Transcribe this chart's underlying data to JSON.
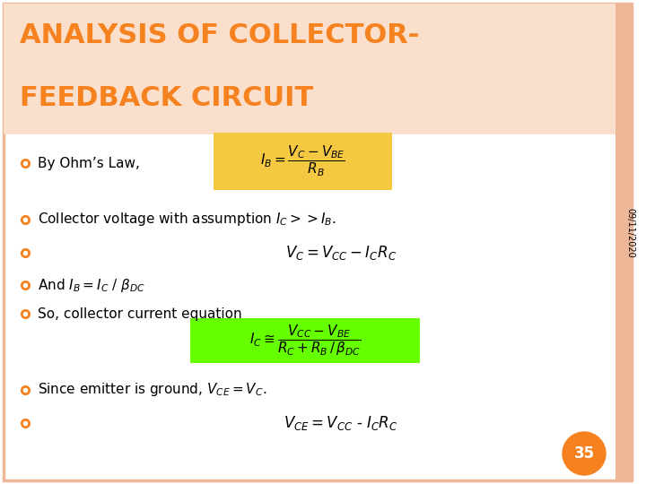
{
  "title_line1": "ANALYSIS OF COLLECTOR-",
  "title_line2": "FEEDBACK CIRCUIT",
  "title_color": "#F5821F",
  "bg_color": "#FFFFFF",
  "border_color": "#EEB898",
  "sidebar_color": "#EEB898",
  "bullet_color": "#F5821F",
  "text_color": "#000000",
  "date_text": "09/11/2020",
  "page_num": "35",
  "page_circle_color": "#F5821F",
  "formula_bg_orange": "#F5C842",
  "formula_bg_green": "#66FF00",
  "title_bg_color": "#FAE0CC",
  "bullet1": "By Ohm’s Law,",
  "formula_IB": "$I_B = \\dfrac{V_C - V_{BE}}{R_B}$",
  "bullet2": "Collector voltage with assumption $I_C$$>>$$I_B$.",
  "formula_VC": "$V_C = V_{CC} - I_C R_C$",
  "bullet3": "And $I_B = I_C$ / $\\beta_{DC}$",
  "bullet4": "So, collector current equation",
  "formula_IC": "$I_C \\cong \\dfrac{V_{CC} - V_{BE}}{R_C + R_B\\,/\\,\\beta_{DC}}$",
  "bullet5": "Since emitter is ground, $V_{CE} = V_C$.",
  "formula_VCE": "$V_{CE} = V_{CC}$ - $I_C R_C$"
}
